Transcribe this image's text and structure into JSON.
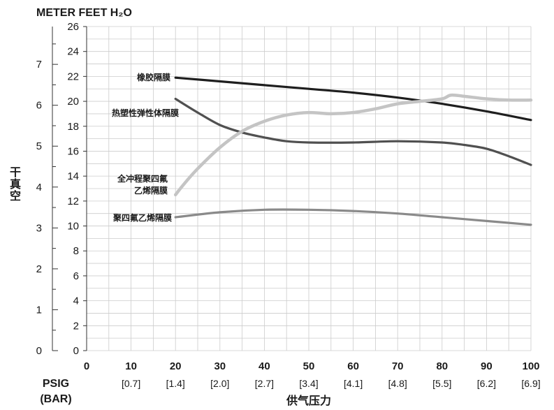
{
  "chart_data": {
    "type": "line",
    "title": "METER FEET H₂O",
    "xlabel": "供气压力",
    "x_unit_labels": [
      "PSIG",
      "(BAR)"
    ],
    "ylabel": "干真空",
    "x_ticks": [
      0,
      10,
      20,
      30,
      40,
      50,
      60,
      70,
      80,
      90,
      100
    ],
    "x_tick_labels": [
      "0",
      "10",
      "20",
      "30",
      "40",
      "50",
      "60",
      "70",
      "80",
      "90",
      "100"
    ],
    "x_bar_labels": [
      "",
      "[0.7]",
      "[1.4]",
      "[2.0]",
      "[2.7]",
      "[3.4]",
      "[4.1]",
      "[4.8]",
      "[5.5]",
      "[6.2]",
      "[6.9]"
    ],
    "xlim": [
      0,
      100
    ],
    "ylim": [
      0,
      26
    ],
    "y_ticks_feet": [
      "0",
      "2",
      "4",
      "6",
      "8",
      "10",
      "12",
      "14",
      "16",
      "18",
      "20",
      "22",
      "24",
      "26"
    ],
    "y_ticks_meter": [
      "0",
      "1",
      "2",
      "3",
      "4",
      "5",
      "6",
      "7"
    ],
    "grid": true,
    "series": [
      {
        "name": "橡胶隔膜",
        "color": "#1e1e1e",
        "x": [
          20,
          30,
          40,
          50,
          60,
          70,
          80,
          90,
          100
        ],
        "y": [
          21.9,
          21.6,
          21.3,
          21.0,
          20.7,
          20.3,
          19.8,
          19.2,
          18.5
        ]
      },
      {
        "name": "热塑性弹性体隔膜",
        "color": "#505050",
        "x": [
          20,
          25,
          30,
          35,
          40,
          45,
          50,
          60,
          70,
          80,
          85,
          90,
          95,
          100
        ],
        "y": [
          20.2,
          19.1,
          18.1,
          17.5,
          17.1,
          16.8,
          16.7,
          16.7,
          16.8,
          16.7,
          16.5,
          16.2,
          15.6,
          14.9
        ]
      },
      {
        "name": "全冲程聚四氟乙烯隔膜",
        "color": "#c4c4c4",
        "x": [
          20,
          22,
          25,
          30,
          35,
          40,
          45,
          50,
          55,
          60,
          65,
          70,
          75,
          80,
          82,
          85,
          90,
          95,
          100
        ],
        "y": [
          12.5,
          13.4,
          14.6,
          16.3,
          17.6,
          18.4,
          18.9,
          19.1,
          19.0,
          19.1,
          19.4,
          19.8,
          20.0,
          20.2,
          20.5,
          20.4,
          20.2,
          20.1,
          20.1
        ]
      },
      {
        "name": "聚四氟乙烯隔膜",
        "color": "#8a8a8a",
        "x": [
          20,
          30,
          40,
          50,
          60,
          70,
          80,
          90,
          100
        ],
        "y": [
          10.7,
          11.1,
          11.3,
          11.3,
          11.2,
          11.0,
          10.7,
          10.4,
          10.1
        ]
      }
    ]
  }
}
